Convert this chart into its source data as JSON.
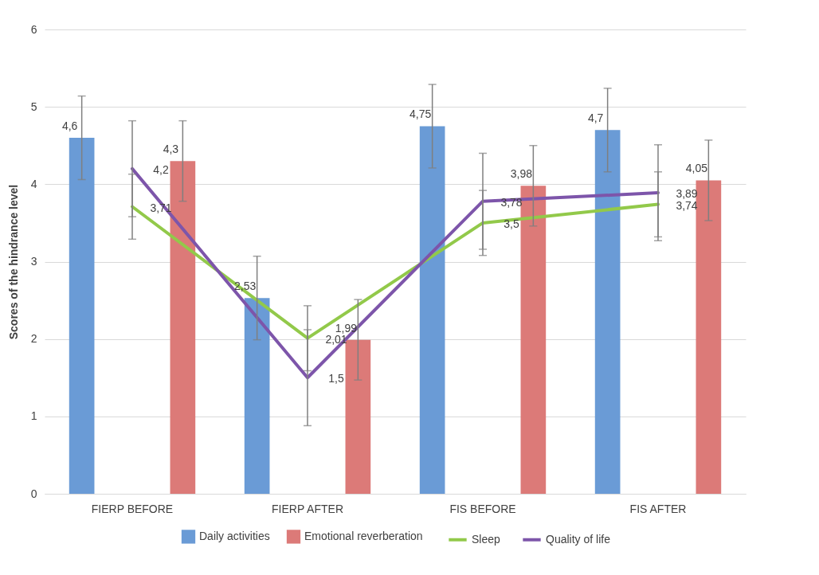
{
  "chart_data": {
    "type": "bar",
    "ylabel": "Scores of the hindrance level",
    "categories": [
      "FIERP BEFORE",
      "FIERP AFTER",
      "FIS BEFORE",
      "FIS AFTER"
    ],
    "series": [
      {
        "name": "Daily activities",
        "color": "#6a9bd6",
        "values": [
          4.6,
          2.53,
          4.75,
          4.7
        ],
        "errors": [
          0.54,
          0.54,
          0.54,
          0.54
        ],
        "value_labels": [
          "4,6",
          "2,53",
          "4,75",
          "4,7"
        ]
      },
      {
        "name": "Emotional reverberation",
        "color": "#dc7a78",
        "values": [
          4.3,
          1.99,
          3.98,
          4.05
        ],
        "errors": [
          0.52,
          0.52,
          0.52,
          0.52
        ],
        "value_labels": [
          "4,3",
          "1,99",
          "3,98",
          "4,05"
        ]
      },
      {
        "name": "Sleep",
        "type": "line",
        "color": "#92c94a",
        "values": [
          3.71,
          2.01,
          3.5,
          3.74
        ],
        "errors": [
          0.42,
          0.42,
          0.42,
          0.42
        ],
        "value_labels": [
          "3,71",
          "2,01",
          "3,5",
          "3,74"
        ]
      },
      {
        "name": "Quality of life",
        "type": "line",
        "color": "#7d55aa",
        "values": [
          4.2,
          1.5,
          3.78,
          3.89
        ],
        "errors": [
          0.62,
          0.62,
          0.62,
          0.62
        ],
        "value_labels": [
          "4,2",
          "1,5",
          "3,78",
          "3,89"
        ]
      }
    ],
    "ylim": [
      0,
      6
    ],
    "yticks": [
      0,
      1,
      2,
      3,
      4,
      5,
      6
    ],
    "grid": "y",
    "legend": "bottom"
  }
}
